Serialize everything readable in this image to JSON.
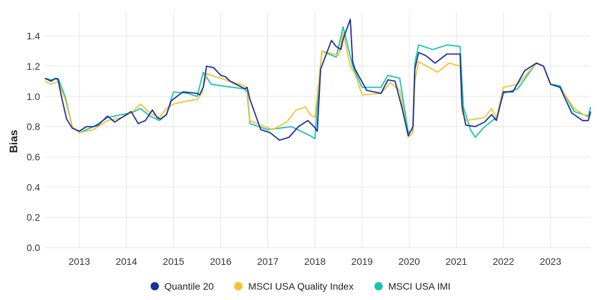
{
  "chart_data": {
    "type": "line",
    "title": "",
    "xlabel": "",
    "ylabel": "Bias",
    "xlim": [
      2012.27,
      2023.85
    ],
    "ylim": [
      0,
      1.56
    ],
    "x_ticks": [
      "2013",
      "2014",
      "2015",
      "2016",
      "2017",
      "2018",
      "2019",
      "2020",
      "2021",
      "2022",
      "2023"
    ],
    "y_ticks": [
      "0.0",
      "0.2",
      "0.4",
      "0.6",
      "0.8",
      "1.0",
      "1.2",
      "1.4"
    ],
    "grid": true,
    "legend_position": "bottom",
    "series": [
      {
        "name": "Quantile 20",
        "color": "#1a2fa0",
        "x": [
          2012.27,
          2012.4,
          2012.5,
          2012.55,
          2012.62,
          2012.73,
          2012.85,
          2013.0,
          2013.15,
          2013.3,
          2013.4,
          2013.6,
          2013.75,
          2013.9,
          2014.1,
          2014.25,
          2014.4,
          2014.55,
          2014.65,
          2014.72,
          2014.85,
          2014.95,
          2015.2,
          2015.5,
          2015.55,
          2015.63,
          2015.7,
          2015.85,
          2016.0,
          2016.1,
          2016.2,
          2016.45,
          2016.52,
          2016.56,
          2016.62,
          2016.85,
          2017.05,
          2017.25,
          2017.45,
          2017.65,
          2017.85,
          2017.98,
          2018.05,
          2018.12,
          2018.35,
          2018.45,
          2018.55,
          2018.6,
          2018.75,
          2018.8,
          2018.85,
          2019.1,
          2019.4,
          2019.55,
          2019.7,
          2019.85,
          2019.98,
          2020.08,
          2020.12,
          2020.2,
          2020.35,
          2020.55,
          2020.8,
          2021.08,
          2021.12,
          2021.2,
          2021.4,
          2021.6,
          2021.75,
          2021.85,
          2022.0,
          2022.2,
          2022.45,
          2022.7,
          2022.85,
          2023.0,
          2023.2,
          2023.45,
          2023.68,
          2023.8,
          2023.85
        ],
        "y": [
          1.12,
          1.1,
          1.12,
          1.11,
          1.0,
          0.85,
          0.79,
          0.77,
          0.8,
          0.8,
          0.81,
          0.87,
          0.83,
          0.86,
          0.9,
          0.82,
          0.84,
          0.91,
          0.86,
          0.85,
          0.88,
          0.97,
          1.03,
          1.02,
          1.01,
          1.06,
          1.2,
          1.19,
          1.14,
          1.13,
          1.1,
          1.06,
          1.05,
          1.06,
          0.98,
          0.78,
          0.76,
          0.71,
          0.73,
          0.8,
          0.84,
          0.8,
          0.77,
          1.18,
          1.37,
          1.33,
          1.31,
          1.38,
          1.51,
          1.23,
          1.18,
          1.04,
          1.02,
          1.11,
          1.1,
          0.92,
          0.74,
          0.8,
          1.18,
          1.29,
          1.27,
          1.22,
          1.28,
          1.28,
          0.94,
          0.81,
          0.8,
          0.83,
          0.88,
          0.84,
          1.03,
          1.03,
          1.17,
          1.22,
          1.2,
          1.08,
          1.06,
          0.89,
          0.84,
          0.84,
          0.9
        ]
      },
      {
        "name": "MSCI USA Quality Index",
        "color": "#f5c22f",
        "x": [
          2012.27,
          2012.4,
          2012.55,
          2012.7,
          2012.85,
          2013.0,
          2013.3,
          2013.6,
          2013.9,
          2014.1,
          2014.3,
          2014.5,
          2014.7,
          2014.85,
          2015.0,
          2015.3,
          2015.5,
          2015.6,
          2015.7,
          2016.0,
          2016.5,
          2016.56,
          2016.62,
          2017.1,
          2017.4,
          2017.6,
          2017.8,
          2017.9,
          2018.0,
          2018.1,
          2018.15,
          2018.4,
          2018.5,
          2018.6,
          2018.75,
          2018.85,
          2019.0,
          2019.4,
          2019.6,
          2019.8,
          2019.98,
          2020.08,
          2020.12,
          2020.2,
          2020.6,
          2020.85,
          2021.08,
          2021.12,
          2021.2,
          2021.6,
          2021.75,
          2021.85,
          2022.0,
          2022.3,
          2022.7,
          2022.85,
          2023.0,
          2023.2,
          2023.5,
          2023.8,
          2023.85
        ],
        "y": [
          1.1,
          1.08,
          1.1,
          0.98,
          0.8,
          0.76,
          0.78,
          0.84,
          0.86,
          0.89,
          0.95,
          0.89,
          0.86,
          0.92,
          0.95,
          0.97,
          0.98,
          1.02,
          1.15,
          1.12,
          1.07,
          1.06,
          0.84,
          0.78,
          0.83,
          0.91,
          0.93,
          0.88,
          0.86,
          1.15,
          1.3,
          1.28,
          1.27,
          1.42,
          1.2,
          1.15,
          1.01,
          1.02,
          1.09,
          1.04,
          0.73,
          0.76,
          1.1,
          1.23,
          1.16,
          1.22,
          1.2,
          0.9,
          0.84,
          0.86,
          0.92,
          0.86,
          1.06,
          1.08,
          1.22,
          1.2,
          1.08,
          1.06,
          0.92,
          0.86,
          0.88
        ]
      },
      {
        "name": "MSCI USA IMI",
        "color": "#17c3b2",
        "x": [
          2012.27,
          2012.4,
          2012.55,
          2012.7,
          2012.85,
          2013.0,
          2013.3,
          2013.6,
          2013.9,
          2014.1,
          2014.3,
          2014.5,
          2014.7,
          2014.85,
          2015.0,
          2015.3,
          2015.5,
          2015.63,
          2015.8,
          2016.0,
          2016.5,
          2016.56,
          2016.62,
          2017.0,
          2017.5,
          2017.9,
          2018.0,
          2018.1,
          2018.15,
          2018.45,
          2018.6,
          2018.8,
          2019.0,
          2019.4,
          2019.55,
          2019.8,
          2019.98,
          2020.08,
          2020.12,
          2020.2,
          2020.5,
          2020.8,
          2021.08,
          2021.15,
          2021.3,
          2021.4,
          2021.6,
          2021.85,
          2022.0,
          2022.3,
          2022.7,
          2022.85,
          2023.0,
          2023.2,
          2023.5,
          2023.8,
          2023.85
        ],
        "y": [
          1.12,
          1.11,
          1.12,
          1.0,
          0.8,
          0.76,
          0.8,
          0.86,
          0.88,
          0.89,
          0.92,
          0.87,
          0.84,
          0.88,
          1.03,
          1.02,
          1.0,
          1.16,
          1.08,
          1.07,
          1.05,
          1.03,
          0.82,
          0.78,
          0.8,
          0.74,
          0.72,
          1.15,
          1.3,
          1.26,
          1.46,
          1.2,
          1.06,
          1.06,
          1.14,
          1.12,
          0.76,
          0.78,
          1.22,
          1.34,
          1.31,
          1.34,
          1.33,
          0.93,
          0.78,
          0.73,
          0.8,
          0.86,
          1.02,
          1.05,
          1.22,
          1.2,
          1.08,
          1.07,
          0.9,
          0.87,
          0.93
        ]
      }
    ]
  }
}
